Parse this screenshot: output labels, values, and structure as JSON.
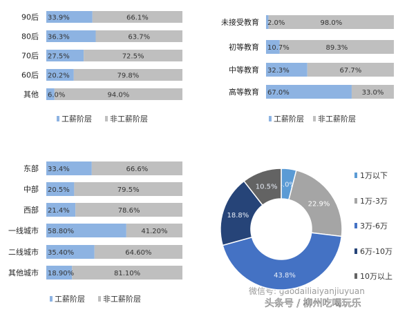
{
  "colors": {
    "blue": "#8db3e2",
    "gray": "#bfbfbf",
    "donut": [
      "#5b9bd5",
      "#a5a5a5",
      "#4472c4",
      "#264478",
      "#636363"
    ]
  },
  "chart_data": [
    {
      "type": "bar",
      "stacked": true,
      "categories": [
        "90后",
        "80后",
        "70后",
        "60后",
        "其他"
      ],
      "series": [
        {
          "name": "工薪阶层",
          "values": [
            33.9,
            36.3,
            27.5,
            20.2,
            6.0
          ],
          "labels": [
            "33.9%",
            "36.3%",
            "27.5%",
            "20.2%",
            "6.0%"
          ]
        },
        {
          "name": "非工薪阶层",
          "values": [
            66.1,
            63.7,
            72.5,
            79.8,
            94.0
          ],
          "labels": [
            "66.1%",
            "63.7%",
            "72.5%",
            "79.8%",
            "94.0%"
          ]
        }
      ],
      "xlim": [
        0,
        100
      ],
      "legend": "bottom"
    },
    {
      "type": "bar",
      "stacked": true,
      "categories": [
        "未接受教育",
        "初等教育",
        "中等教育",
        "高等教育"
      ],
      "series": [
        {
          "name": "工薪阶层",
          "values": [
            2.0,
            10.7,
            32.3,
            67.0
          ],
          "labels": [
            "2.0%",
            "10.7%",
            "32.3%",
            "67.0%"
          ]
        },
        {
          "name": "非工薪阶层",
          "values": [
            98.0,
            89.3,
            67.7,
            33.0
          ],
          "labels": [
            "98.0%",
            "89.3%",
            "67.7%",
            "33.0%"
          ]
        }
      ],
      "xlim": [
        0,
        100
      ],
      "legend": "bottom"
    },
    {
      "type": "bar",
      "stacked": true,
      "categories": [
        "东部",
        "中部",
        "西部",
        "一线城市",
        "二线城市",
        "其他城市"
      ],
      "series": [
        {
          "name": "工薪阶层",
          "values": [
            33.4,
            20.5,
            21.4,
            58.8,
            35.4,
            18.9
          ],
          "labels": [
            "33.4%",
            "20.5%",
            "21.4%",
            "58.80%",
            "35.40%",
            "18.90%"
          ]
        },
        {
          "name": "非工薪阶层",
          "values": [
            66.6,
            79.5,
            78.6,
            41.2,
            64.6,
            81.1
          ],
          "labels": [
            "66.6%",
            "79.5%",
            "78.6%",
            "41.20%",
            "64.60%",
            "81.10%"
          ]
        }
      ],
      "xlim": [
        0,
        100
      ],
      "legend": "bottom"
    },
    {
      "type": "pie",
      "donut": true,
      "categories": [
        "1万以下",
        "1万-3万",
        "3万-6万",
        "6万-10万",
        "10万以上"
      ],
      "values": [
        4.0,
        22.9,
        43.8,
        18.8,
        10.5
      ],
      "labels": [
        "4.0%",
        "22.9%",
        "43.8%",
        "18.8%",
        "10.5%"
      ],
      "legend": "right"
    }
  ],
  "watermark": "微信号: gaodailiaiyanjiuyuan",
  "footer_text": "头条号 / 柳州吃喝玩乐"
}
